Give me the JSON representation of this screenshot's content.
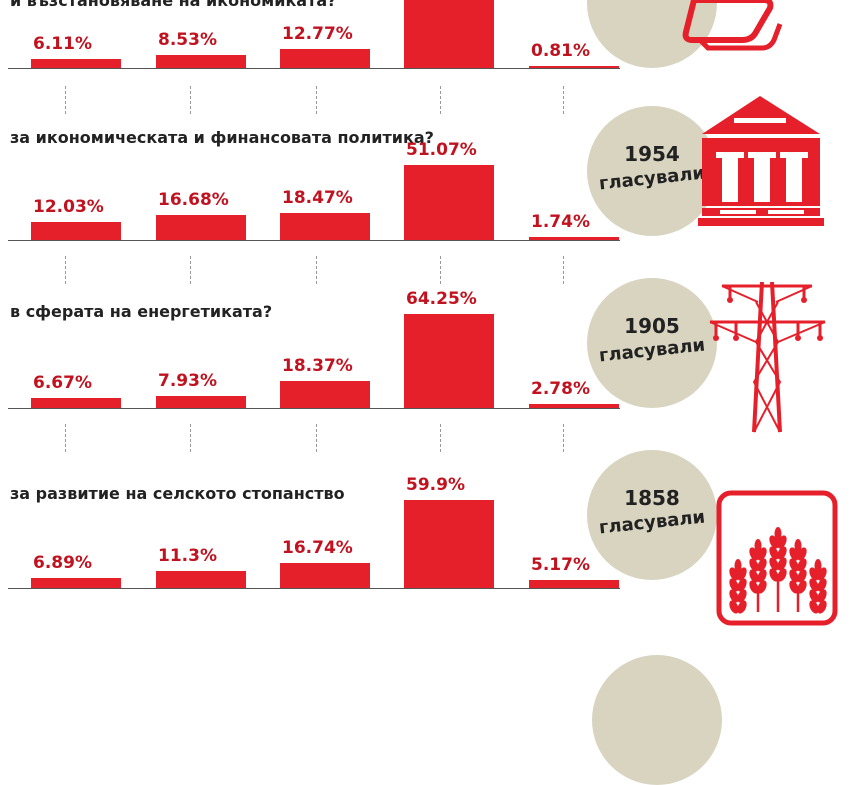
{
  "colors": {
    "bar": "#e5202b",
    "label": "#c1121f",
    "circle": "#d8d4c0",
    "icon": "#e5202b"
  },
  "chart_data": [
    {
      "type": "bar",
      "title": "и възстановяване на икономиката?",
      "values": [
        6.11,
        8.53,
        12.77,
        null,
        0.81
      ],
      "labels": [
        "6.11%",
        "8.53%",
        "12.77%",
        "",
        "0.81%"
      ],
      "votes": "",
      "votes_label": "",
      "icon": "tablet-icon"
    },
    {
      "type": "bar",
      "title": "за икономическата и финансовата политика?",
      "values": [
        12.03,
        16.68,
        18.47,
        51.07,
        1.74
      ],
      "labels": [
        "12.03%",
        "16.68%",
        "18.47%",
        "51.07%",
        "1.74%"
      ],
      "votes": "1954",
      "votes_label": "гласували",
      "icon": "bank-building-icon"
    },
    {
      "type": "bar",
      "title": "в сферата на енергетиката?",
      "values": [
        6.67,
        7.93,
        18.37,
        64.25,
        2.78
      ],
      "labels": [
        "6.67%",
        "7.93%",
        "18.37%",
        "64.25%",
        "2.78%"
      ],
      "votes": "1905",
      "votes_label": "гласували",
      "icon": "power-pylon-icon"
    },
    {
      "type": "bar",
      "title": "за развитие на селското стопанство",
      "values": [
        6.89,
        11.3,
        16.74,
        59.9,
        5.17
      ],
      "labels": [
        "6.89%",
        "11.3%",
        "16.74%",
        "59.9%",
        "5.17%"
      ],
      "votes": "1858",
      "votes_label": "гласували",
      "icon": "wheat-icon"
    }
  ]
}
